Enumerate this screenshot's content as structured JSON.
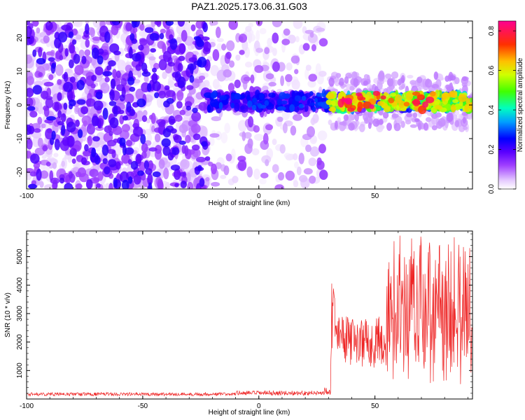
{
  "figure_title": "PAZ1.2025.173.06.31.G03",
  "chart_data": [
    {
      "type": "heatmap",
      "xlabel": "Height of straight line (km)",
      "ylabel": "Frequency (Hz)",
      "xlim": [
        -100,
        92
      ],
      "ylim": [
        -25,
        25
      ],
      "x_ticks": [
        -100,
        -50,
        0,
        50
      ],
      "x_tick_labels": [
        "-100",
        "-50",
        "0",
        "50"
      ],
      "y_ticks": [
        -20,
        -10,
        0,
        10,
        20
      ],
      "y_tick_labels": [
        "-20",
        "-10",
        "0",
        "10",
        "20"
      ],
      "colorbar": {
        "label": "Normalized spectral amplitude",
        "range": [
          0,
          0.85
        ],
        "ticks": [
          0,
          0.2,
          0.4,
          0.6,
          0.8
        ],
        "tick_labels": [
          "0.0",
          "0.2",
          "0.4",
          "0.6",
          "0.8"
        ],
        "colormap": [
          "#ffffff",
          "#e6ccff",
          "#a040ff",
          "#6a00ff",
          "#0000ff",
          "#00c8ff",
          "#00ff80",
          "#80ff00",
          "#ffff00",
          "#ff8000",
          "#ff0000",
          "#ff0080"
        ]
      },
      "features": {
        "noise_region_x": [
          -100,
          28
        ],
        "noise_density_decreasing_after_x": -22,
        "noise_frequency_range": [
          -25,
          25
        ],
        "signal_band_start_x": -22,
        "signal_band_center_freq": 1,
        "signal_band_halfwidth": 2.5,
        "strong_signal_after_x": 30,
        "peak_amplitude_x": [
          35,
          75
        ]
      },
      "grid": false
    },
    {
      "type": "line",
      "xlabel": "Height of straight line (km)",
      "ylabel": "SNR (10 * v/v)",
      "xlim": [
        -100,
        92
      ],
      "ylim": [
        0,
        5900
      ],
      "x_ticks": [
        -100,
        -50,
        0,
        50
      ],
      "x_tick_labels": [
        "-100",
        "-50",
        "0",
        "50"
      ],
      "y_ticks": [
        1000,
        2000,
        3000,
        4000,
        5000
      ],
      "y_tick_labels": [
        "1000",
        "2000",
        "3000",
        "4000",
        "5000"
      ],
      "series": [
        {
          "color": "#ee2222",
          "segments": [
            {
              "x_range": [
                -100,
                -10
              ],
              "baseline": 170,
              "amplitude": 60
            },
            {
              "x_range": [
                -10,
                28
              ],
              "baseline": 210,
              "amplitude": 80
            },
            {
              "x_range": [
                28,
                31
              ],
              "baseline": 300,
              "amplitude": 150
            },
            {
              "x_range": [
                31,
                33
              ],
              "peak": 4300
            },
            {
              "x_range": [
                33,
                55
              ],
              "baseline": 2000,
              "amplitude": 900
            },
            {
              "x_range": [
                55,
                92
              ],
              "baseline": 3000,
              "amplitude": 2500
            }
          ],
          "max_value": 5900
        }
      ],
      "grid": false
    }
  ]
}
